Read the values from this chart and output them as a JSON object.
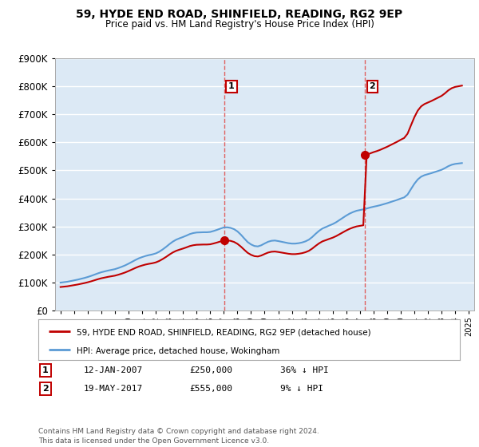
{
  "title": "59, HYDE END ROAD, SHINFIELD, READING, RG2 9EP",
  "subtitle": "Price paid vs. HM Land Registry's House Price Index (HPI)",
  "ylim": [
    0,
    900000
  ],
  "yticks": [
    0,
    100000,
    200000,
    300000,
    400000,
    500000,
    600000,
    700000,
    800000,
    900000
  ],
  "xlim_start": 1994.6,
  "xlim_end": 2025.4,
  "bg_color": "#dce9f5",
  "grid_color": "#ffffff",
  "sale1_year": 2007.04,
  "sale1_price": 250000,
  "sale2_year": 2017.38,
  "sale2_price": 555000,
  "hpi_color": "#5b9bd5",
  "sale_color": "#c00000",
  "dashed_color": "#e06060",
  "legend_sale_label": "59, HYDE END ROAD, SHINFIELD, READING, RG2 9EP (detached house)",
  "legend_hpi_label": "HPI: Average price, detached house, Wokingham",
  "note1_num": "1",
  "note1_date": "12-JAN-2007",
  "note1_price": "£250,000",
  "note1_pct": "36% ↓ HPI",
  "note2_num": "2",
  "note2_date": "19-MAY-2017",
  "note2_price": "£555,000",
  "note2_pct": "9% ↓ HPI",
  "footer": "Contains HM Land Registry data © Crown copyright and database right 2024.\nThis data is licensed under the Open Government Licence v3.0.",
  "hpi_years": [
    1995.0,
    1995.25,
    1995.5,
    1995.75,
    1996.0,
    1996.25,
    1996.5,
    1996.75,
    1997.0,
    1997.25,
    1997.5,
    1997.75,
    1998.0,
    1998.25,
    1998.5,
    1998.75,
    1999.0,
    1999.25,
    1999.5,
    1999.75,
    2000.0,
    2000.25,
    2000.5,
    2000.75,
    2001.0,
    2001.25,
    2001.5,
    2001.75,
    2002.0,
    2002.25,
    2002.5,
    2002.75,
    2003.0,
    2003.25,
    2003.5,
    2003.75,
    2004.0,
    2004.25,
    2004.5,
    2004.75,
    2005.0,
    2005.25,
    2005.5,
    2005.75,
    2006.0,
    2006.25,
    2006.5,
    2006.75,
    2007.0,
    2007.25,
    2007.5,
    2007.75,
    2008.0,
    2008.25,
    2008.5,
    2008.75,
    2009.0,
    2009.25,
    2009.5,
    2009.75,
    2010.0,
    2010.25,
    2010.5,
    2010.75,
    2011.0,
    2011.25,
    2011.5,
    2011.75,
    2012.0,
    2012.25,
    2012.5,
    2012.75,
    2013.0,
    2013.25,
    2013.5,
    2013.75,
    2014.0,
    2014.25,
    2014.5,
    2014.75,
    2015.0,
    2015.25,
    2015.5,
    2015.75,
    2016.0,
    2016.25,
    2016.5,
    2016.75,
    2017.0,
    2017.25,
    2017.5,
    2017.75,
    2018.0,
    2018.25,
    2018.5,
    2018.75,
    2019.0,
    2019.25,
    2019.5,
    2019.75,
    2020.0,
    2020.25,
    2020.5,
    2020.75,
    2021.0,
    2021.25,
    2021.5,
    2021.75,
    2022.0,
    2022.25,
    2022.5,
    2022.75,
    2023.0,
    2023.25,
    2023.5,
    2023.75,
    2024.0,
    2024.25,
    2024.5
  ],
  "hpi_values": [
    100000,
    101500,
    103000,
    105500,
    108000,
    110500,
    113500,
    116500,
    120000,
    124000,
    128500,
    133000,
    137000,
    140000,
    143000,
    145500,
    148000,
    152000,
    156500,
    161500,
    167500,
    174000,
    180500,
    186500,
    191000,
    195000,
    198000,
    200500,
    204000,
    210000,
    218000,
    227000,
    237000,
    246000,
    253000,
    258000,
    262500,
    267500,
    273000,
    276500,
    278500,
    279000,
    279500,
    279500,
    280500,
    284000,
    288000,
    292500,
    296500,
    297000,
    295000,
    290500,
    282500,
    271000,
    257500,
    244500,
    236000,
    230500,
    229000,
    233000,
    239500,
    245500,
    249000,
    250000,
    248000,
    245500,
    243000,
    240500,
    239000,
    239000,
    240500,
    243000,
    247000,
    253000,
    262500,
    274000,
    284500,
    293000,
    298000,
    303500,
    308500,
    315000,
    323000,
    331000,
    339000,
    346000,
    351500,
    356000,
    358500,
    361000,
    364000,
    367500,
    370500,
    373000,
    376000,
    379500,
    383000,
    387000,
    391000,
    395000,
    399500,
    403500,
    413500,
    433000,
    452000,
    467500,
    477500,
    483000,
    486500,
    490000,
    494000,
    498000,
    502000,
    508000,
    515000,
    520000,
    523000,
    524500,
    526000
  ],
  "sale_years": [
    2007.04,
    2017.38
  ],
  "sale_prices": [
    250000,
    555000
  ]
}
